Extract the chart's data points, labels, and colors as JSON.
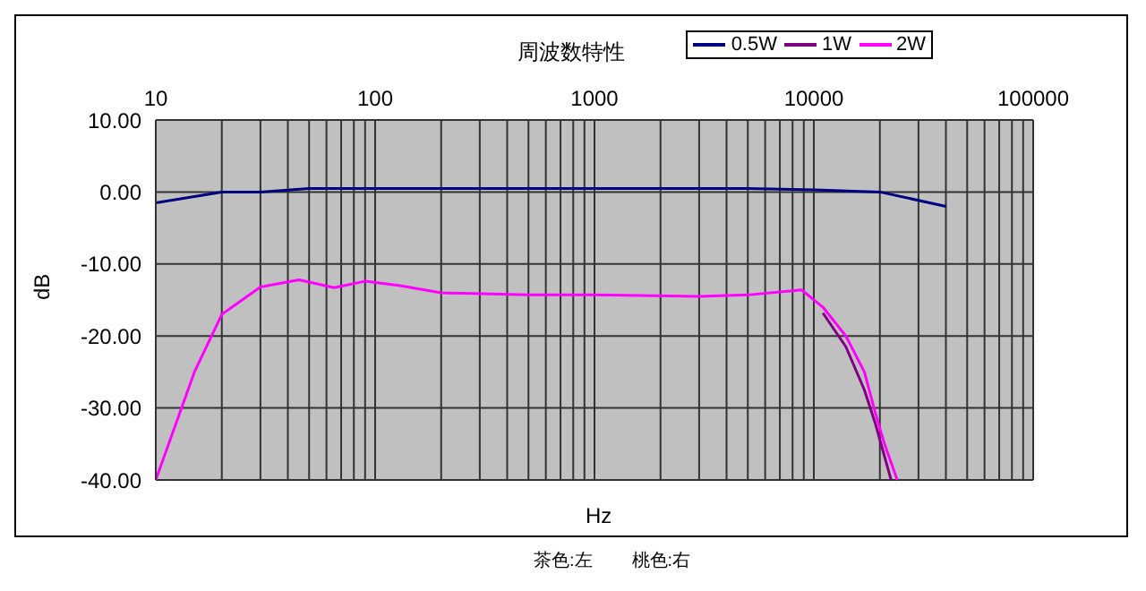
{
  "chart_data": {
    "type": "line",
    "title": "周波数特性",
    "xlabel": "Hz",
    "ylabel": "dB",
    "log": "x",
    "xlim": [
      10,
      100000
    ],
    "xticks": [
      10,
      {
        "value": 20,
        "label": null
      },
      {
        "value": 30,
        "label": null
      },
      {
        "value": 40,
        "label": null
      },
      {
        "value": 50,
        "label": null
      },
      {
        "value": 60,
        "label": null
      },
      {
        "value": 70,
        "label": null
      },
      {
        "value": 80,
        "label": null
      },
      {
        "value": 90,
        "label": null
      },
      100,
      {
        "value": 200,
        "label": null
      },
      {
        "value": 300,
        "label": null
      },
      {
        "value": 400,
        "label": null
      },
      {
        "value": 500,
        "label": null
      },
      {
        "value": 600,
        "label": null
      },
      {
        "value": 700,
        "label": null
      },
      {
        "value": 800,
        "label": null
      },
      {
        "value": 900,
        "label": null
      },
      1000,
      {
        "value": 2000,
        "label": null
      },
      {
        "value": 3000,
        "label": null
      },
      {
        "value": 4000,
        "label": null
      },
      {
        "value": 5000,
        "label": null
      },
      {
        "value": 6000,
        "label": null
      },
      {
        "value": 7000,
        "label": null
      },
      {
        "value": 8000,
        "label": null
      },
      {
        "value": 9000,
        "label": null
      },
      10000,
      {
        "value": 20000,
        "label": null
      },
      {
        "value": 30000,
        "label": null
      },
      {
        "value": 40000,
        "label": null
      },
      {
        "value": 50000,
        "label": null
      },
      {
        "value": 60000,
        "label": null
      },
      {
        "value": 70000,
        "label": null
      },
      {
        "value": 80000,
        "label": null
      },
      {
        "value": 90000,
        "label": null
      },
      100000
    ],
    "ylim": [
      -40,
      10
    ],
    "yticks": [
      {
        "value": -40,
        "label": "-40.00"
      },
      {
        "value": -30,
        "label": "-30.00"
      },
      {
        "value": -20,
        "label": "-20.00"
      },
      {
        "value": -10,
        "label": "-10.00"
      },
      {
        "value": 0,
        "label": "0.00"
      },
      {
        "value": 10,
        "label": "10.00"
      }
    ],
    "grid": true,
    "legend": "top right",
    "marker": "none",
    "line_style": "solid",
    "series": [
      {
        "name": "0.5W",
        "color": "#000080",
        "x": [
          10,
          20,
          30,
          50,
          100,
          1000,
          5000,
          10000,
          20000,
          40000
        ],
        "values": [
          -1.5,
          0,
          0,
          0.5,
          0.5,
          0.5,
          0.5,
          0.3,
          0,
          -2
        ]
      },
      {
        "name": "1W",
        "color": "#800080",
        "x": [
          11000,
          14000,
          17000,
          19000,
          22500
        ],
        "values": [
          -16.8,
          -21.5,
          -27.5,
          -32,
          -40
        ]
      },
      {
        "name": "2W",
        "color": "#ff00ff",
        "x": [
          10,
          15,
          20,
          30,
          45,
          65,
          90,
          130,
          200,
          500,
          1000,
          3000,
          5000,
          8800,
          11000,
          14000,
          17000,
          19000,
          21000,
          24000
        ],
        "values": [
          -40,
          -25,
          -17,
          -13.2,
          -12.2,
          -13.3,
          -12.4,
          -13,
          -14,
          -14.3,
          -14.3,
          -14.5,
          -14.3,
          -13.6,
          -16,
          -20,
          -25,
          -30.5,
          -35,
          -40
        ]
      }
    ],
    "annotations": [
      "茶色:左",
      "桃色:右"
    ]
  }
}
